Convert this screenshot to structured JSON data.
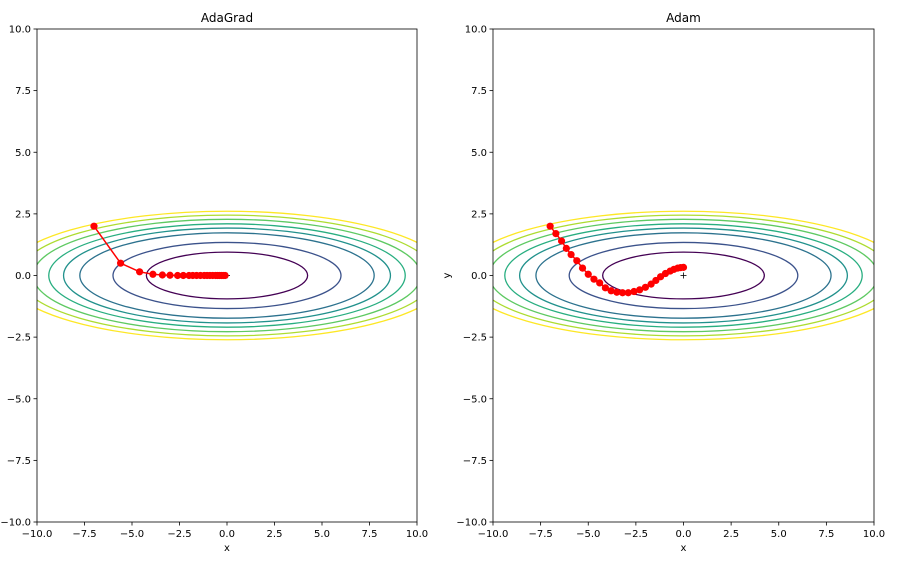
{
  "chart_data": [
    {
      "type": "line",
      "title": "AdaGrad",
      "xlabel": "x",
      "ylabel": "",
      "xlim": [
        -10,
        10
      ],
      "ylim": [
        -10,
        10
      ],
      "xticks": [
        "−10.0",
        "−7.5",
        "−5.0",
        "−2.5",
        "0.0",
        "2.5",
        "5.0",
        "7.5",
        "10.0"
      ],
      "yticks": [
        "10.0",
        "7.5",
        "5.0",
        "2.5",
        "0.0",
        "−2.5",
        "−5.0",
        "−7.5",
        "−10.0"
      ],
      "contour_function": "x^2/20 + y^2",
      "contour_levels": [
        0.9,
        1.8,
        3.0,
        3.7,
        4.4,
        5.2,
        6.0,
        6.8
      ],
      "contour_colors": [
        "#440154",
        "#3b528b",
        "#2c728e",
        "#21918c",
        "#28ae80",
        "#5ec962",
        "#addc30",
        "#fde725"
      ],
      "minimum_marker": "+",
      "series": [
        {
          "color": "#ff0000",
          "x": [
            -7.0,
            -5.6,
            -4.6,
            -3.9,
            -3.4,
            -3.0,
            -2.6,
            -2.3,
            -2.0,
            -1.8,
            -1.6,
            -1.4,
            -1.2,
            -1.05,
            -0.9,
            -0.75,
            -0.6,
            -0.5,
            -0.4,
            -0.3,
            -0.2,
            -0.1
          ],
          "y": [
            2.0,
            0.5,
            0.15,
            0.05,
            0.02,
            0.01,
            0.0,
            0.0,
            0.0,
            0.0,
            0.0,
            0.0,
            0.0,
            0.0,
            0.0,
            0.0,
            0.0,
            0.0,
            0.0,
            0.0,
            0.0,
            0.0
          ]
        }
      ]
    },
    {
      "type": "line",
      "title": "Adam",
      "xlabel": "x",
      "ylabel": "y",
      "xlim": [
        -10,
        10
      ],
      "ylim": [
        -10,
        10
      ],
      "xticks": [
        "−10.0",
        "−7.5",
        "−5.0",
        "−2.5",
        "0.0",
        "2.5",
        "5.0",
        "7.5",
        "10.0"
      ],
      "yticks": [
        "10.0",
        "7.5",
        "5.0",
        "2.5",
        "0.0",
        "−2.5",
        "−5.0",
        "−7.5",
        "−10.0"
      ],
      "contour_function": "x^2/20 + y^2",
      "contour_levels": [
        0.9,
        1.8,
        3.0,
        3.7,
        4.4,
        5.2,
        6.0,
        6.8
      ],
      "contour_colors": [
        "#440154",
        "#3b528b",
        "#2c728e",
        "#21918c",
        "#28ae80",
        "#5ec962",
        "#addc30",
        "#fde725"
      ],
      "minimum_marker": "+",
      "series": [
        {
          "color": "#ff0000",
          "x": [
            -7.0,
            -6.7,
            -6.4,
            -6.15,
            -5.9,
            -5.6,
            -5.3,
            -5.0,
            -4.7,
            -4.4,
            -4.1,
            -3.8,
            -3.5,
            -3.2,
            -2.9,
            -2.6,
            -2.3,
            -2.0,
            -1.7,
            -1.45,
            -1.2,
            -0.95,
            -0.7,
            -0.5,
            -0.3,
            -0.15,
            0.0
          ],
          "y": [
            2.0,
            1.7,
            1.4,
            1.1,
            0.85,
            0.6,
            0.3,
            0.05,
            -0.15,
            -0.3,
            -0.5,
            -0.62,
            -0.68,
            -0.7,
            -0.7,
            -0.65,
            -0.58,
            -0.48,
            -0.35,
            -0.2,
            -0.05,
            0.08,
            0.18,
            0.25,
            0.3,
            0.32,
            0.33
          ]
        }
      ]
    }
  ]
}
